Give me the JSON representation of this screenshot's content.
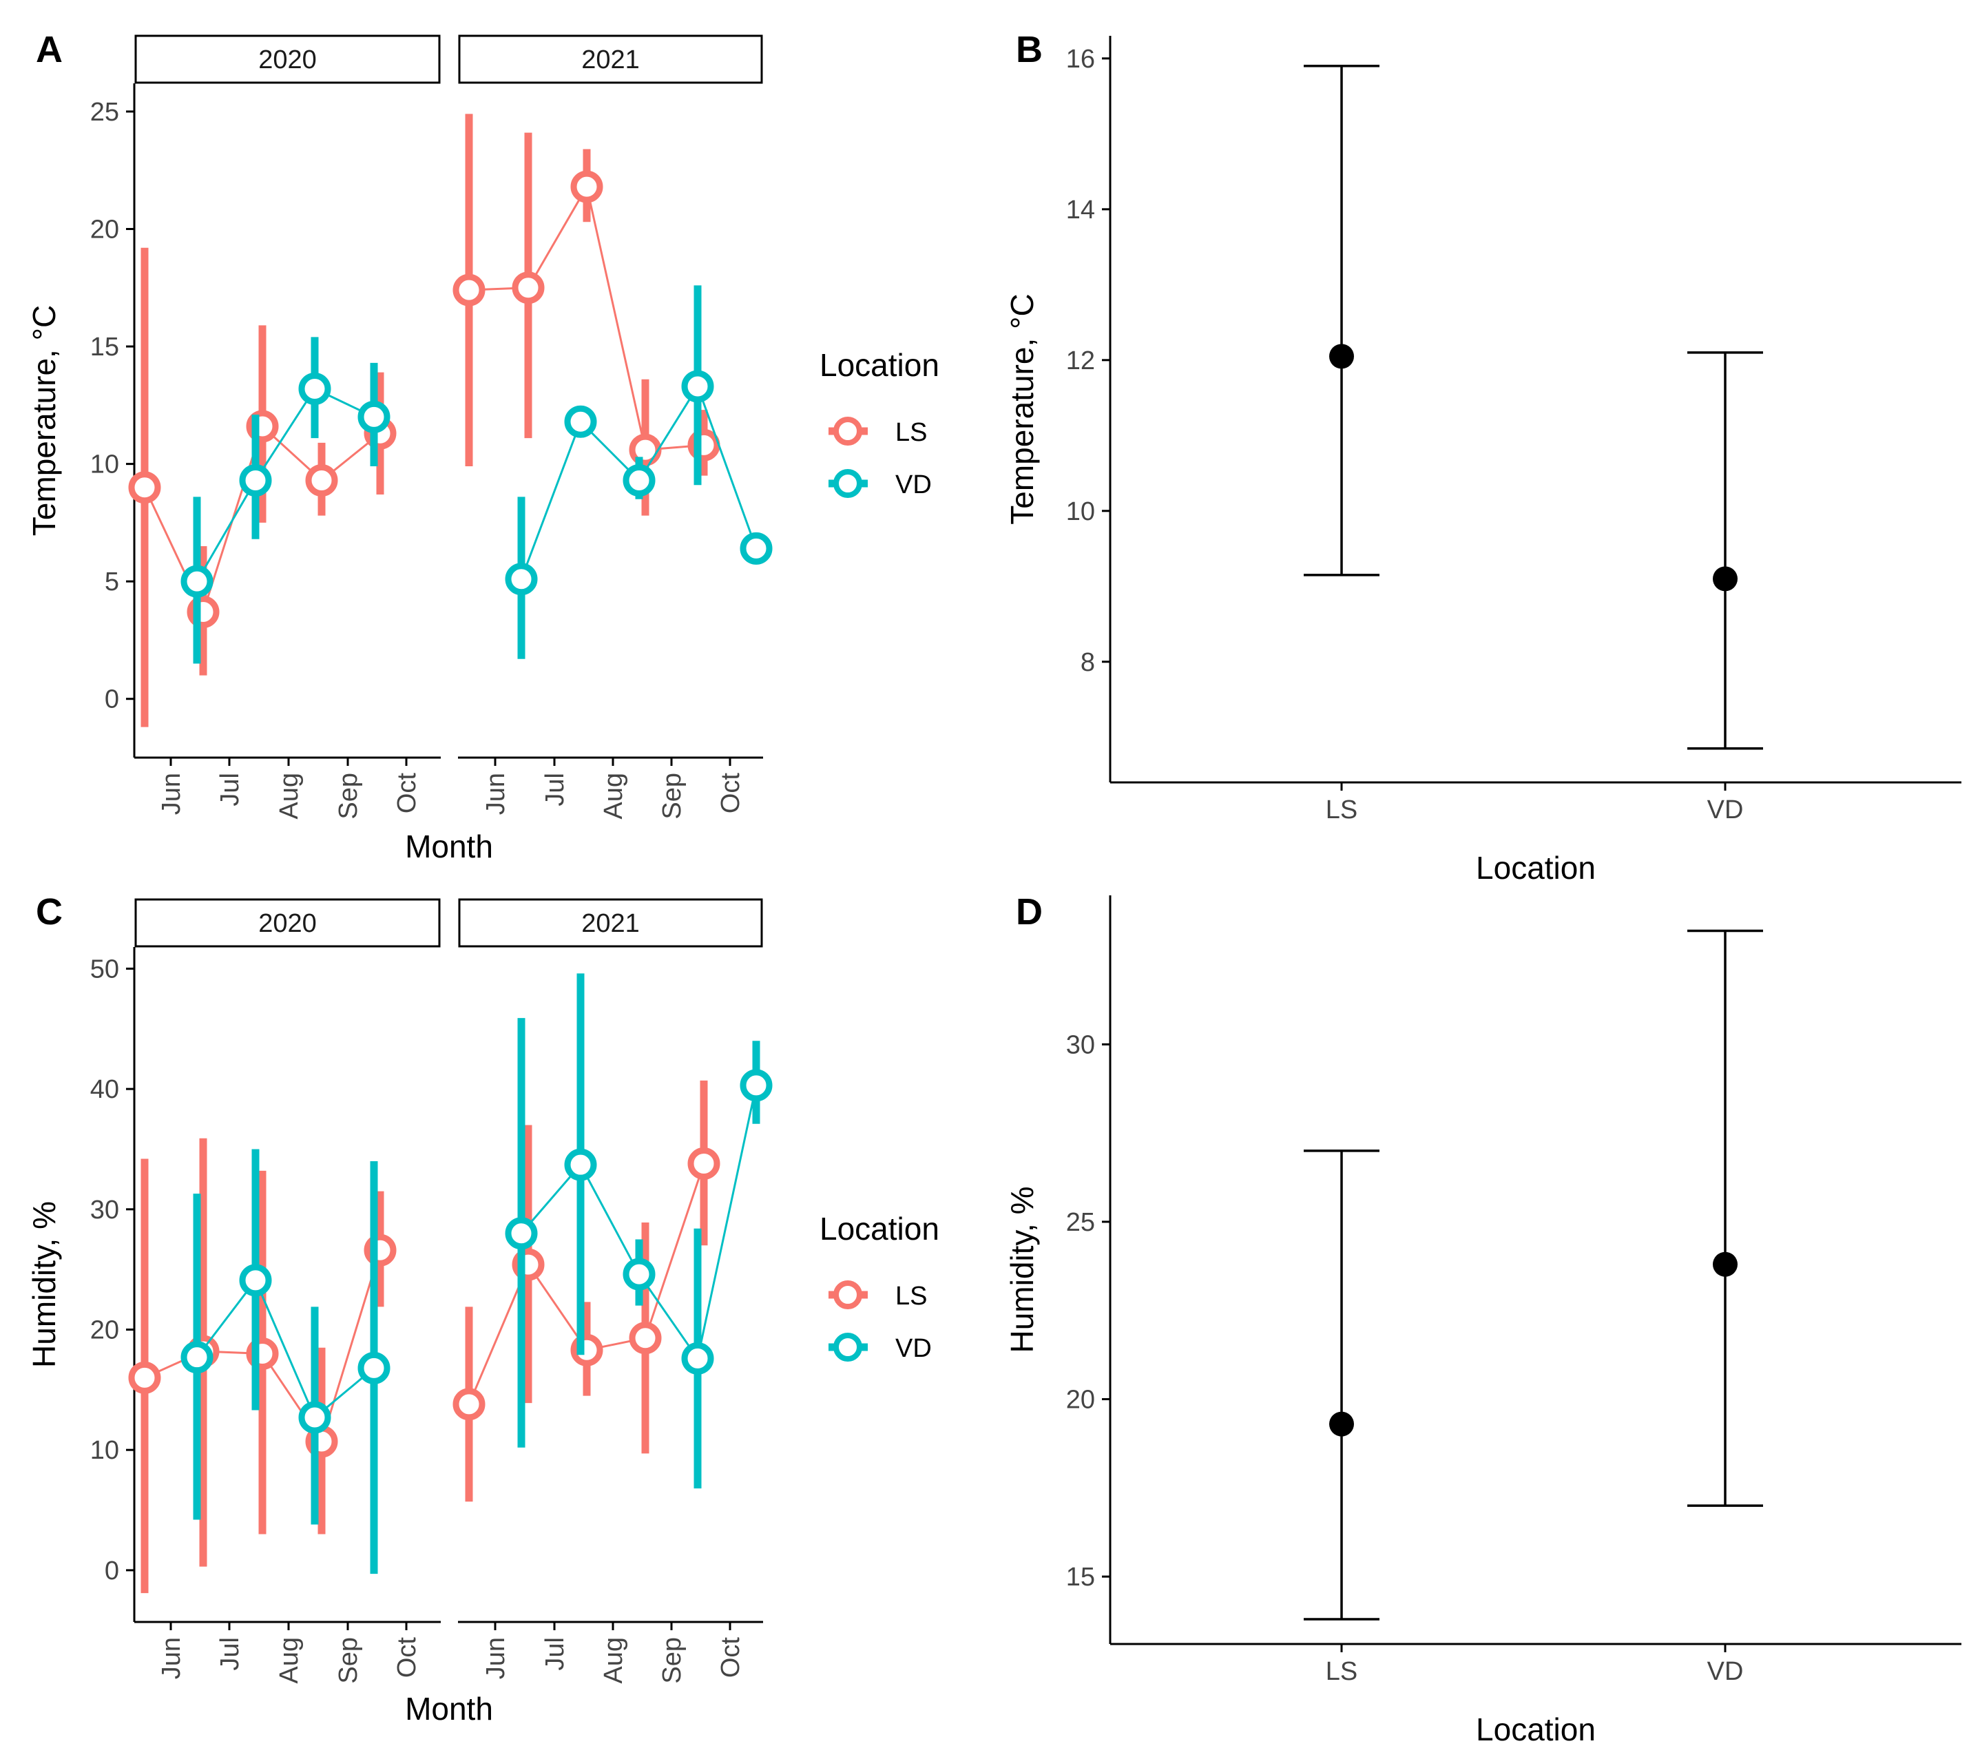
{
  "colors": {
    "LS": "#F8766D",
    "VD": "#00BFC4",
    "axis": "#000000",
    "tick_text": "#444444"
  },
  "chart_data": [
    {
      "panel": "A",
      "type": "line",
      "title": "",
      "xlabel": "Month",
      "ylabel": "Temperature, °C",
      "ylim": [
        -2.5,
        26.2
      ],
      "yticks": [
        "0",
        "5",
        "10",
        "15",
        "20",
        "25"
      ],
      "categories": [
        "Jun",
        "Jul",
        "Aug",
        "Sep",
        "Oct"
      ],
      "facets": [
        "2020",
        "2021"
      ],
      "legend": {
        "title": "Location",
        "entries": [
          "LS",
          "VD"
        ],
        "position": "right"
      },
      "series": [
        {
          "name": "LS",
          "facet": "2020",
          "values": [
            9.0,
            3.7,
            11.6,
            9.3,
            11.3
          ],
          "lower": [
            -1.2,
            1.0,
            7.5,
            7.8,
            8.7
          ],
          "upper": [
            19.2,
            6.5,
            15.9,
            10.9,
            13.9
          ]
        },
        {
          "name": "VD",
          "facet": "2020",
          "values": [
            5.0,
            9.3,
            13.2,
            12.0,
            null
          ],
          "lower": [
            1.5,
            6.8,
            11.1,
            9.9,
            null
          ],
          "upper": [
            8.6,
            12.1,
            15.4,
            14.3,
            null
          ]
        },
        {
          "name": "LS",
          "facet": "2021",
          "values": [
            17.4,
            17.5,
            21.8,
            10.6,
            10.8
          ],
          "lower": [
            9.9,
            11.1,
            20.3,
            7.8,
            9.5
          ],
          "upper": [
            24.9,
            24.1,
            23.4,
            13.6,
            12.3
          ]
        },
        {
          "name": "VD",
          "facet": "2021",
          "values": [
            5.1,
            11.8,
            9.3,
            13.3,
            6.4
          ],
          "lower": [
            1.7,
            null,
            8.5,
            9.1,
            null
          ],
          "upper": [
            8.6,
            null,
            10.3,
            17.6,
            null
          ]
        }
      ]
    },
    {
      "panel": "B",
      "type": "scatter",
      "title": "",
      "xlabel": "Location",
      "ylabel": "Temperature, °C",
      "ylim": [
        6.4,
        16.3
      ],
      "yticks": [
        "8",
        "10",
        "12",
        "14",
        "16"
      ],
      "categories": [
        "LS",
        "VD"
      ],
      "values": [
        12.05,
        9.1
      ],
      "lower": [
        9.15,
        6.85
      ],
      "upper": [
        15.9,
        12.1
      ]
    },
    {
      "panel": "C",
      "type": "line",
      "title": "",
      "xlabel": "Month",
      "ylabel": "Humidity, %",
      "ylim": [
        -4.3,
        51.8
      ],
      "yticks": [
        "0",
        "10",
        "20",
        "30",
        "40",
        "50"
      ],
      "categories": [
        "Jun",
        "Jul",
        "Aug",
        "Sep",
        "Oct"
      ],
      "facets": [
        "2020",
        "2021"
      ],
      "legend": {
        "title": "Location",
        "entries": [
          "LS",
          "VD"
        ],
        "position": "right"
      },
      "series": [
        {
          "name": "LS",
          "facet": "2020",
          "values": [
            16.0,
            18.2,
            18.0,
            10.7,
            26.6
          ],
          "lower": [
            -1.9,
            0.3,
            3.0,
            3.0,
            21.9
          ],
          "upper": [
            34.2,
            35.9,
            33.2,
            18.5,
            31.5
          ]
        },
        {
          "name": "VD",
          "facet": "2020",
          "values": [
            17.7,
            24.1,
            12.7,
            16.8,
            null
          ],
          "lower": [
            4.2,
            13.3,
            3.8,
            -0.3,
            null
          ],
          "upper": [
            31.3,
            35.0,
            21.9,
            34.0,
            null
          ]
        },
        {
          "name": "LS",
          "facet": "2021",
          "values": [
            13.8,
            25.4,
            18.3,
            19.3,
            33.8
          ],
          "lower": [
            5.7,
            13.9,
            14.5,
            9.7,
            27.0
          ],
          "upper": [
            21.9,
            37.0,
            22.3,
            28.9,
            40.7
          ]
        },
        {
          "name": "VD",
          "facet": "2021",
          "values": [
            28.0,
            33.7,
            24.6,
            17.6,
            40.3
          ],
          "lower": [
            10.2,
            17.9,
            22.0,
            6.8,
            37.1
          ],
          "upper": [
            45.9,
            49.6,
            27.5,
            28.4,
            44.0
          ]
        }
      ]
    },
    {
      "panel": "D",
      "type": "scatter",
      "title": "",
      "xlabel": "Location",
      "ylabel": "Humidity, %",
      "ylim": [
        13.1,
        34.2
      ],
      "yticks": [
        "15",
        "20",
        "25",
        "30"
      ],
      "categories": [
        "LS",
        "VD"
      ],
      "values": [
        19.3,
        23.8
      ],
      "lower": [
        13.8,
        17.0
      ],
      "upper": [
        27.0,
        33.2
      ]
    }
  ]
}
